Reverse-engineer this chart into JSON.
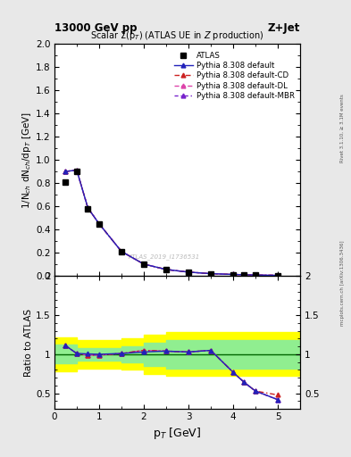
{
  "title_top": "13000 GeV pp",
  "title_right": "Z+Jet",
  "plot_title": "Scalar Σ(p_T) (ATLAS UE in Z production)",
  "ylabel_main": "1/N_{ch} dN_{ch}/dp_T [GeV]",
  "ylabel_ratio": "Ratio to ATLAS",
  "xlabel": "p_T [GeV]",
  "watermark": "ATLAS_2019_I1736531",
  "right_label": "mcplots.cern.ch [arXiv:1306.3436]",
  "rivet_label": "Rivet 3.1.10, ≥ 3.1M events",
  "atlas_x": [
    0.25,
    0.5,
    0.75,
    1.0,
    1.5,
    2.0,
    2.5,
    3.0,
    3.5,
    4.0,
    4.25,
    4.5,
    5.0
  ],
  "atlas_y": [
    0.81,
    0.9,
    0.58,
    0.45,
    0.21,
    0.1,
    0.055,
    0.033,
    0.02,
    0.013,
    0.01,
    0.008,
    0.005
  ],
  "atlas_yerr": [
    0.02,
    0.02,
    0.015,
    0.01,
    0.006,
    0.004,
    0.003,
    0.002,
    0.002,
    0.001,
    0.001,
    0.001,
    0.001
  ],
  "py_default_x": [
    0.25,
    0.5,
    0.75,
    1.0,
    1.5,
    2.0,
    2.5,
    3.0,
    3.5,
    4.0,
    4.25,
    4.5,
    5.0
  ],
  "py_default_y": [
    0.9,
    0.91,
    0.585,
    0.45,
    0.212,
    0.103,
    0.057,
    0.034,
    0.021,
    0.014,
    0.011,
    0.009,
    0.006
  ],
  "py_default_color": "#2222bb",
  "py_default_label": "Pythia 8.308 default",
  "py_cd_x": [
    0.25,
    0.5,
    0.75,
    1.0,
    1.5,
    2.0,
    2.5,
    3.0,
    3.5,
    4.0,
    4.25,
    4.5,
    5.0
  ],
  "py_cd_y": [
    0.9,
    0.91,
    0.585,
    0.45,
    0.212,
    0.103,
    0.057,
    0.034,
    0.021,
    0.014,
    0.011,
    0.009,
    0.006
  ],
  "py_cd_color": "#cc2222",
  "py_cd_label": "Pythia 8.308 default-CD",
  "py_dl_x": [
    0.25,
    0.5,
    0.75,
    1.0,
    1.5,
    2.0,
    2.5,
    3.0,
    3.5,
    4.0,
    4.25,
    4.5,
    5.0
  ],
  "py_dl_y": [
    0.9,
    0.91,
    0.585,
    0.45,
    0.212,
    0.103,
    0.057,
    0.034,
    0.021,
    0.014,
    0.011,
    0.009,
    0.006
  ],
  "py_dl_color": "#dd44aa",
  "py_dl_label": "Pythia 8.308 default-DL",
  "py_mbr_x": [
    0.25,
    0.5,
    0.75,
    1.0,
    1.5,
    2.0,
    2.5,
    3.0,
    3.5,
    4.0,
    4.25,
    4.5,
    5.0
  ],
  "py_mbr_y": [
    0.9,
    0.91,
    0.585,
    0.45,
    0.212,
    0.103,
    0.057,
    0.034,
    0.021,
    0.014,
    0.011,
    0.009,
    0.006
  ],
  "py_mbr_color": "#7722cc",
  "py_mbr_label": "Pythia 8.308 default-MBR",
  "ratio_x": [
    0.25,
    0.5,
    0.75,
    1.0,
    1.5,
    2.0,
    2.5,
    3.0,
    3.5,
    4.0,
    4.25,
    4.5,
    5.0
  ],
  "ratio_default_y": [
    1.11,
    1.01,
    1.005,
    1.0,
    1.01,
    1.03,
    1.04,
    1.03,
    1.05,
    0.77,
    0.64,
    0.53,
    0.42
  ],
  "ratio_cd_y": [
    1.11,
    1.01,
    0.99,
    0.99,
    1.01,
    1.05,
    1.04,
    1.03,
    1.05,
    0.77,
    0.64,
    0.53,
    0.48
  ],
  "ratio_dl_y": [
    1.11,
    1.01,
    0.99,
    0.99,
    1.01,
    1.05,
    1.04,
    1.03,
    1.05,
    0.77,
    0.64,
    0.53,
    0.42
  ],
  "ratio_mbr_y": [
    1.11,
    1.01,
    0.99,
    0.99,
    1.01,
    1.05,
    1.04,
    1.03,
    1.05,
    0.77,
    0.64,
    0.53,
    0.42
  ],
  "band_x_edges": [
    0.0,
    0.5,
    1.0,
    1.5,
    2.0,
    2.5,
    3.5,
    4.5,
    5.5
  ],
  "band_green_lo": [
    0.88,
    0.92,
    0.92,
    0.9,
    0.85,
    0.82,
    0.82,
    0.82,
    0.82
  ],
  "band_green_hi": [
    1.12,
    1.08,
    1.08,
    1.1,
    1.15,
    1.18,
    1.18,
    1.18,
    1.18
  ],
  "band_yellow_lo": [
    0.78,
    0.82,
    0.82,
    0.8,
    0.75,
    0.72,
    0.72,
    0.72,
    0.72
  ],
  "band_yellow_hi": [
    1.22,
    1.18,
    1.18,
    1.2,
    1.25,
    1.28,
    1.28,
    1.28,
    1.28
  ],
  "xlim": [
    0,
    5.5
  ],
  "ylim_main_lo": 0.0,
  "ylim_main_hi": 2.0,
  "ylim_ratio_lo": 0.3,
  "ylim_ratio_hi": 2.0,
  "bg_color": "#e8e8e8",
  "plot_bg": "#ffffff"
}
